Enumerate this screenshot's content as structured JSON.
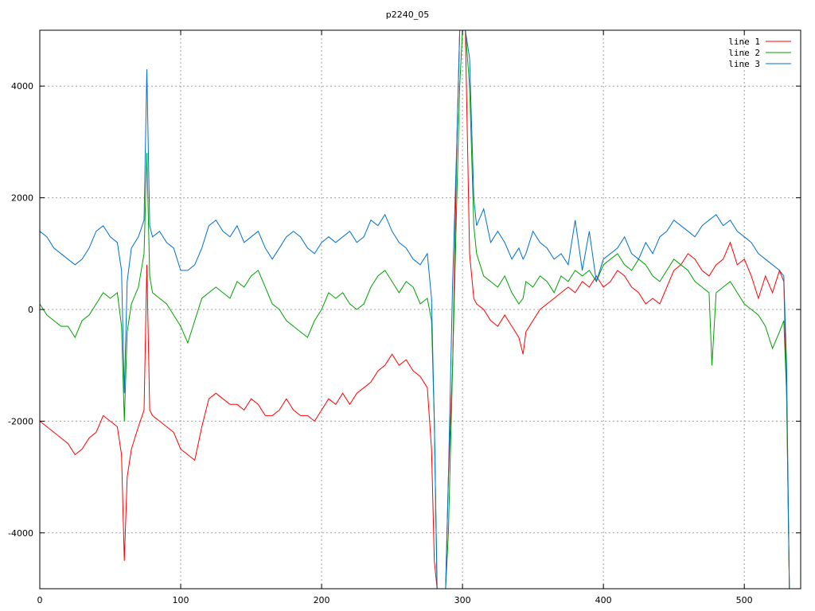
{
  "chart_data": {
    "type": "line",
    "title": "p2240_05",
    "xlim": [
      0,
      540
    ],
    "ylim": [
      -5000,
      5000
    ],
    "xticks": [
      0,
      100,
      200,
      300,
      400,
      500
    ],
    "yticks": [
      -4000,
      -2000,
      0,
      2000,
      4000
    ],
    "ytick_labels": [
      "-4000",
      "-2000",
      "0",
      "2000",
      "4000"
    ],
    "grid": true,
    "legend_position": "top-right",
    "series": [
      {
        "name": "line 1",
        "color": "#ff0000",
        "x": [
          0,
          5,
          10,
          15,
          20,
          25,
          30,
          35,
          40,
          45,
          50,
          55,
          58,
          60,
          62,
          65,
          70,
          74,
          76,
          78,
          80,
          85,
          90,
          95,
          100,
          105,
          110,
          115,
          120,
          125,
          130,
          135,
          140,
          145,
          150,
          155,
          160,
          165,
          170,
          175,
          180,
          185,
          190,
          195,
          200,
          205,
          210,
          215,
          220,
          225,
          230,
          235,
          240,
          245,
          250,
          255,
          260,
          265,
          270,
          275,
          278,
          280,
          282,
          285,
          288,
          290,
          293,
          296,
          298,
          300,
          302,
          305,
          308,
          310,
          315,
          320,
          325,
          330,
          335,
          340,
          343,
          345,
          350,
          355,
          360,
          365,
          370,
          375,
          380,
          385,
          390,
          395,
          400,
          405,
          410,
          415,
          420,
          425,
          430,
          435,
          440,
          445,
          450,
          455,
          460,
          465,
          470,
          475,
          480,
          485,
          490,
          495,
          500,
          505,
          510,
          515,
          520,
          525,
          528,
          530,
          532
        ],
        "values": [
          -2000,
          -2100,
          -2200,
          -2300,
          -2400,
          -2600,
          -2500,
          -2300,
          -2200,
          -1900,
          -2000,
          -2100,
          -2600,
          -4500,
          -3000,
          -2500,
          -2100,
          -1800,
          800,
          -1800,
          -1900,
          -2000,
          -2100,
          -2200,
          -2500,
          -2600,
          -2700,
          -2100,
          -1600,
          -1500,
          -1600,
          -1700,
          -1700,
          -1800,
          -1600,
          -1700,
          -1900,
          -1900,
          -1800,
          -1600,
          -1800,
          -1900,
          -1900,
          -2000,
          -1800,
          -1600,
          -1700,
          -1500,
          -1700,
          -1500,
          -1400,
          -1300,
          -1100,
          -1000,
          -800,
          -1000,
          -900,
          -1100,
          -1200,
          -1400,
          -2500,
          -4500,
          -5000,
          -5000,
          -5000,
          -3000,
          -1000,
          3000,
          5000,
          5000,
          5000,
          1000,
          200,
          100,
          0,
          -200,
          -300,
          -100,
          -300,
          -500,
          -800,
          -400,
          -200,
          0,
          100,
          200,
          300,
          400,
          300,
          500,
          400,
          600,
          400,
          500,
          700,
          600,
          400,
          300,
          100,
          200,
          100,
          400,
          700,
          800,
          1000,
          900,
          700,
          600,
          800,
          900,
          1200,
          800,
          900,
          600,
          200,
          600,
          300,
          700,
          500,
          -1500,
          -5000
        ]
      },
      {
        "name": "line 2",
        "color": "#00a000",
        "x": [
          0,
          5,
          10,
          15,
          20,
          25,
          30,
          35,
          40,
          45,
          50,
          55,
          58,
          60,
          62,
          65,
          70,
          74,
          76,
          78,
          80,
          85,
          90,
          95,
          100,
          105,
          110,
          115,
          120,
          125,
          130,
          135,
          140,
          145,
          150,
          155,
          160,
          165,
          170,
          175,
          180,
          185,
          190,
          195,
          200,
          205,
          210,
          215,
          220,
          225,
          230,
          235,
          240,
          245,
          250,
          255,
          260,
          265,
          270,
          275,
          278,
          280,
          282,
          285,
          288,
          290,
          293,
          296,
          298,
          300,
          302,
          305,
          308,
          310,
          315,
          320,
          325,
          330,
          335,
          340,
          343,
          345,
          350,
          355,
          360,
          365,
          370,
          375,
          380,
          385,
          390,
          395,
          400,
          405,
          410,
          415,
          420,
          425,
          430,
          435,
          440,
          445,
          450,
          455,
          460,
          465,
          470,
          475,
          477,
          480,
          485,
          490,
          495,
          500,
          505,
          510,
          515,
          520,
          525,
          528,
          530,
          532
        ],
        "values": [
          100,
          -100,
          -200,
          -300,
          -300,
          -500,
          -200,
          -100,
          100,
          300,
          200,
          300,
          -300,
          -2000,
          -400,
          100,
          400,
          1000,
          2800,
          600,
          300,
          200,
          100,
          -100,
          -300,
          -600,
          -200,
          200,
          300,
          400,
          300,
          200,
          500,
          400,
          600,
          700,
          400,
          100,
          0,
          -200,
          -300,
          -400,
          -500,
          -200,
          0,
          300,
          200,
          300,
          100,
          0,
          100,
          400,
          600,
          700,
          500,
          300,
          500,
          400,
          100,
          200,
          -200,
          -2000,
          -5000,
          -5000,
          -5000,
          -4000,
          -1000,
          2000,
          4000,
          5000,
          5000,
          4000,
          1500,
          1000,
          600,
          500,
          400,
          600,
          300,
          100,
          200,
          500,
          400,
          600,
          500,
          300,
          600,
          500,
          700,
          600,
          700,
          500,
          800,
          900,
          1000,
          800,
          700,
          900,
          800,
          600,
          500,
          700,
          900,
          800,
          700,
          500,
          400,
          300,
          -1000,
          300,
          400,
          500,
          300,
          100,
          0,
          -100,
          -300,
          -700,
          -400,
          -200,
          -1500,
          -5000
        ]
      },
      {
        "name": "line 3",
        "color": "#0070d0",
        "x": [
          0,
          5,
          10,
          15,
          20,
          25,
          30,
          35,
          40,
          45,
          50,
          55,
          58,
          60,
          62,
          65,
          70,
          74,
          76,
          78,
          80,
          85,
          90,
          95,
          100,
          105,
          110,
          115,
          120,
          125,
          130,
          135,
          140,
          145,
          150,
          155,
          160,
          165,
          170,
          175,
          180,
          185,
          190,
          195,
          200,
          205,
          210,
          215,
          220,
          225,
          230,
          235,
          240,
          245,
          250,
          255,
          260,
          265,
          270,
          275,
          278,
          280,
          282,
          285,
          288,
          290,
          293,
          296,
          298,
          300,
          302,
          305,
          308,
          310,
          315,
          320,
          325,
          330,
          335,
          340,
          343,
          345,
          350,
          355,
          360,
          365,
          370,
          375,
          380,
          385,
          390,
          395,
          400,
          405,
          410,
          415,
          420,
          425,
          430,
          435,
          440,
          445,
          450,
          455,
          460,
          465,
          470,
          475,
          480,
          485,
          490,
          495,
          500,
          505,
          510,
          515,
          520,
          525,
          528,
          530,
          532
        ],
        "values": [
          1400,
          1300,
          1100,
          1000,
          900,
          800,
          900,
          1100,
          1400,
          1500,
          1300,
          1200,
          700,
          -1500,
          500,
          1100,
          1300,
          1600,
          4300,
          1500,
          1300,
          1400,
          1200,
          1100,
          700,
          700,
          800,
          1100,
          1500,
          1600,
          1400,
          1300,
          1500,
          1200,
          1300,
          1400,
          1100,
          900,
          1100,
          1300,
          1400,
          1300,
          1100,
          1000,
          1200,
          1300,
          1200,
          1300,
          1400,
          1200,
          1300,
          1600,
          1500,
          1700,
          1400,
          1200,
          1100,
          900,
          800,
          1000,
          200,
          -2000,
          -5000,
          -5000,
          -5000,
          -3000,
          500,
          3000,
          5000,
          5000,
          5000,
          4500,
          2000,
          1500,
          1800,
          1200,
          1400,
          1200,
          900,
          1100,
          900,
          1000,
          1400,
          1200,
          1100,
          900,
          1000,
          800,
          1600,
          700,
          1400,
          500,
          900,
          1000,
          1100,
          1300,
          1000,
          900,
          1200,
          1000,
          1300,
          1400,
          1600,
          1500,
          1400,
          1300,
          1500,
          1600,
          1700,
          1500,
          1600,
          1400,
          1300,
          1200,
          1000,
          900,
          800,
          700,
          600,
          -1000,
          -5000
        ]
      }
    ]
  }
}
